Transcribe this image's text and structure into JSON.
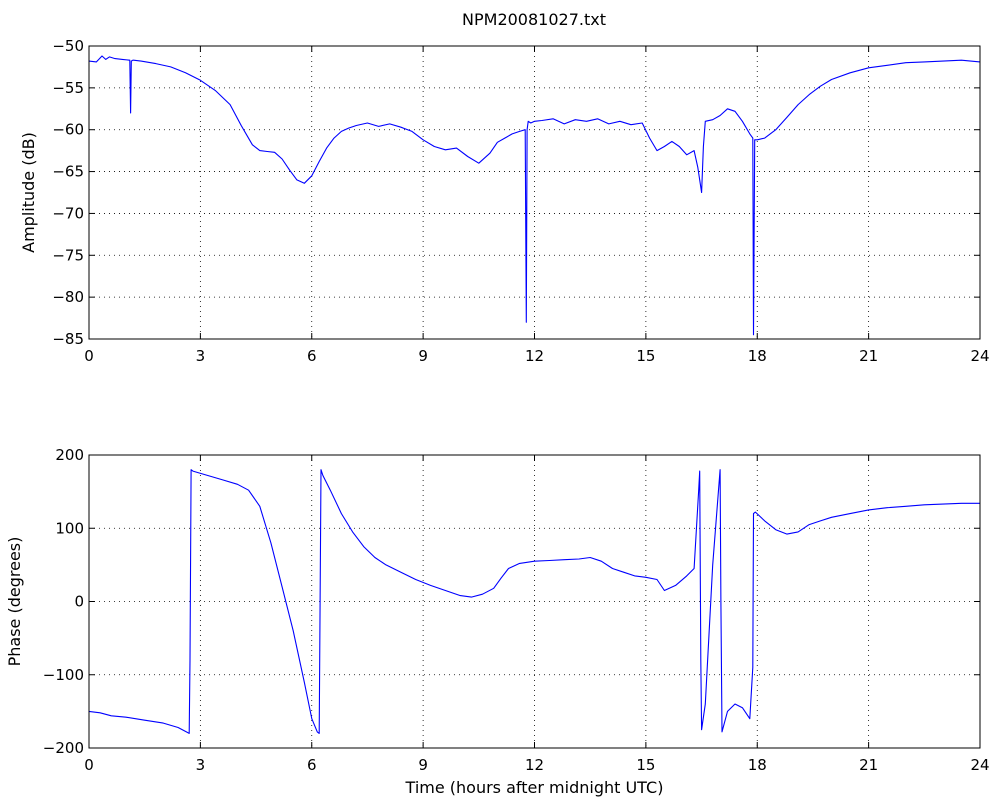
{
  "figure": {
    "title": "NPM20081027.txt"
  },
  "colors": {
    "line": "#0000ff",
    "axes": "#000000",
    "background": "#ffffff"
  },
  "chart_data": [
    {
      "type": "line",
      "title": "NPM20081027.txt",
      "xlabel": "",
      "ylabel": "Amplitude (dB)",
      "xlim": [
        0,
        24
      ],
      "ylim": [
        -85,
        -50
      ],
      "xticks": [
        0,
        3,
        6,
        9,
        12,
        15,
        18,
        21,
        24
      ],
      "yticks": [
        -85,
        -80,
        -75,
        -70,
        -65,
        -60,
        -55,
        -50
      ],
      "grid": true,
      "series": [
        {
          "x": [
            0,
            0.2,
            0.35,
            0.45,
            0.55,
            0.7,
            0.9,
            1.1,
            1.12,
            1.14,
            1.18,
            1.2,
            1.4,
            1.8,
            2.2,
            2.6,
            3.0,
            3.4,
            3.8,
            4.1,
            4.4,
            4.6,
            4.8,
            5.0,
            5.2,
            5.4,
            5.6,
            5.8,
            6.0,
            6.2,
            6.4,
            6.6,
            6.8,
            7.0,
            7.2,
            7.5,
            7.8,
            8.1,
            8.4,
            8.7,
            9.0,
            9.3,
            9.6,
            9.9,
            10.2,
            10.5,
            10.8,
            11.0,
            11.2,
            11.4,
            11.6,
            11.75,
            11.78,
            11.8,
            11.83,
            11.9,
            12.0,
            12.2,
            12.5,
            12.8,
            13.1,
            13.4,
            13.7,
            14.0,
            14.3,
            14.6,
            14.9,
            15.1,
            15.3,
            15.5,
            15.7,
            15.9,
            16.1,
            16.3,
            16.4,
            16.45,
            16.5,
            16.55,
            16.6,
            16.8,
            17.0,
            17.2,
            17.4,
            17.6,
            17.8,
            17.88,
            17.9,
            17.93,
            18.0,
            18.2,
            18.5,
            18.8,
            19.1,
            19.4,
            19.7,
            20.0,
            20.5,
            21.0,
            21.5,
            22.0,
            22.5,
            23.0,
            23.5,
            24.0
          ],
          "values": [
            -51.8,
            -51.9,
            -51.2,
            -51.6,
            -51.3,
            -51.5,
            -51.6,
            -51.7,
            -58.0,
            -51.8,
            -51.7,
            -51.7,
            -51.8,
            -52.1,
            -52.5,
            -53.2,
            -54.1,
            -55.3,
            -57.0,
            -59.5,
            -61.8,
            -62.5,
            -62.6,
            -62.7,
            -63.5,
            -64.8,
            -66.0,
            -66.4,
            -65.5,
            -63.8,
            -62.2,
            -61.0,
            -60.2,
            -59.8,
            -59.5,
            -59.2,
            -59.6,
            -59.3,
            -59.7,
            -60.2,
            -61.2,
            -62.0,
            -62.4,
            -62.2,
            -63.2,
            -64.0,
            -62.8,
            -61.5,
            -61.0,
            -60.5,
            -60.2,
            -60.0,
            -83.0,
            -60.0,
            -59.0,
            -59.2,
            -59.0,
            -58.9,
            -58.7,
            -59.3,
            -58.8,
            -59.0,
            -58.7,
            -59.3,
            -59.0,
            -59.4,
            -59.2,
            -61.0,
            -62.5,
            -62.0,
            -61.4,
            -62.0,
            -63.0,
            -62.5,
            -64.5,
            -66.0,
            -67.5,
            -62.0,
            -59.0,
            -58.8,
            -58.3,
            -57.5,
            -57.8,
            -59.0,
            -60.5,
            -61.0,
            -84.5,
            -61.2,
            -61.2,
            -61.0,
            -60.0,
            -58.5,
            -57.0,
            -55.8,
            -54.8,
            -54.0,
            -53.2,
            -52.6,
            -52.3,
            -52.0,
            -51.9,
            -51.8,
            -51.7,
            -51.9
          ]
        }
      ]
    },
    {
      "type": "line",
      "title": "",
      "xlabel": "Time (hours after midnight UTC)",
      "ylabel": "Phase (degrees)",
      "xlim": [
        0,
        24
      ],
      "ylim": [
        -200,
        200
      ],
      "xticks": [
        0,
        3,
        6,
        9,
        12,
        15,
        18,
        21,
        24
      ],
      "yticks": [
        -200,
        -100,
        0,
        100,
        200
      ],
      "grid": true,
      "series": [
        {
          "x": [
            0,
            0.3,
            0.6,
            1.0,
            1.5,
            2.0,
            2.4,
            2.7,
            2.72,
            2.75,
            2.8,
            3.2,
            3.6,
            4.0,
            4.3,
            4.6,
            4.9,
            5.2,
            5.5,
            5.8,
            6.0,
            6.15,
            6.2,
            6.25,
            6.3,
            6.5,
            6.8,
            7.1,
            7.4,
            7.7,
            8.0,
            8.4,
            8.8,
            9.2,
            9.6,
            10.0,
            10.3,
            10.6,
            10.9,
            11.1,
            11.3,
            11.6,
            12.0,
            12.4,
            12.8,
            13.2,
            13.5,
            13.8,
            14.1,
            14.4,
            14.7,
            15.0,
            15.3,
            15.5,
            15.8,
            16.1,
            16.3,
            16.42,
            16.45,
            16.48,
            16.5,
            16.6,
            16.8,
            17.0,
            17.02,
            17.05,
            17.2,
            17.4,
            17.6,
            17.8,
            17.88,
            17.9,
            17.95,
            18.2,
            18.5,
            18.8,
            19.1,
            19.4,
            19.7,
            20.0,
            20.5,
            21.0,
            21.5,
            22.0,
            22.5,
            23.0,
            23.5,
            24.0
          ],
          "values": [
            -150,
            -152,
            -156,
            -158,
            -162,
            -166,
            -172,
            -180,
            -80,
            180,
            178,
            172,
            166,
            160,
            152,
            130,
            80,
            20,
            -40,
            -110,
            -160,
            -178,
            -180,
            180,
            172,
            152,
            120,
            95,
            75,
            60,
            50,
            40,
            30,
            22,
            15,
            8,
            6,
            10,
            18,
            32,
            45,
            52,
            55,
            56,
            57,
            58,
            60,
            55,
            45,
            40,
            35,
            33,
            30,
            15,
            22,
            35,
            45,
            150,
            178,
            -80,
            -175,
            -140,
            50,
            180,
            0,
            -178,
            -150,
            -140,
            -145,
            -160,
            -90,
            120,
            122,
            110,
            98,
            92,
            95,
            105,
            110,
            115,
            120,
            125,
            128,
            130,
            132,
            133,
            134,
            134
          ]
        }
      ]
    }
  ]
}
